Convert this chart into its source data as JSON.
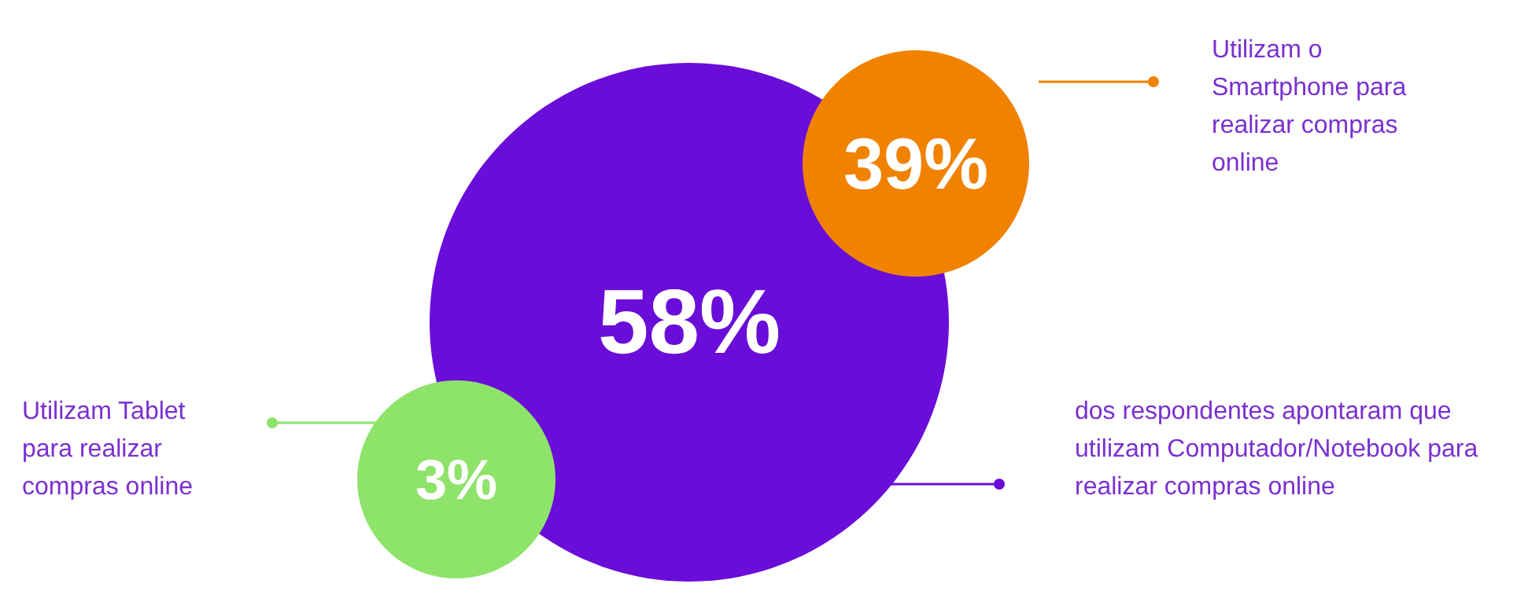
{
  "chart_data": {
    "type": "other",
    "categories": [
      "dos respondentes apontaram que utilizam Computador/Notebook para realizar compras online",
      "Utilizam o Smartphone para realizar compras online",
      "Utilizam Tablet para realizar compras online"
    ],
    "values": [
      58,
      39,
      3
    ],
    "value_labels": [
      "58%",
      "39%",
      "3%"
    ],
    "colors": [
      "#6a0dd8",
      "#f08200",
      "#8ee36a"
    ]
  }
}
